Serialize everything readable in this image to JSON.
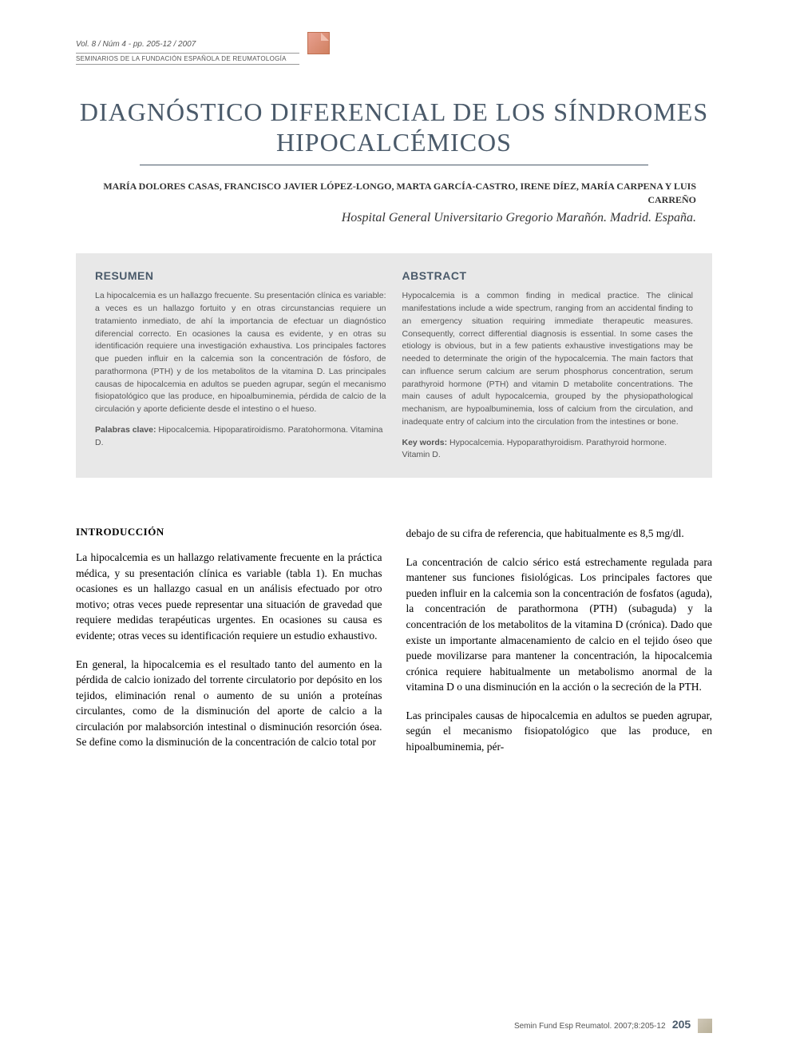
{
  "colors": {
    "title_color": "#4a5a6a",
    "text_color": "#000000",
    "abstract_bg": "#e8e8e8",
    "abstract_text": "#555555",
    "meta_text": "#555555",
    "rule_color": "#4a5a6a"
  },
  "typography": {
    "title_fontsize": 32,
    "abstract_heading_fontsize": 14,
    "abstract_body_fontsize": 10.5,
    "section_heading_fontsize": 13,
    "body_fontsize": 13.5,
    "body_family": "Georgia, serif",
    "sans_family": "Arial, sans-serif"
  },
  "header": {
    "volume_line": "Vol. 8 / Núm 4 - pp. 205-12 / 2007",
    "journal_line": "SEMINARIOS DE LA FUNDACIÓN ESPAÑOLA DE REUMATOLOGÍA"
  },
  "title": "DIAGNÓSTICO DIFERENCIAL DE LOS SÍNDROMES HIPOCALCÉMICOS",
  "authors": "MARÍA DOLORES CASAS, FRANCISCO JAVIER LÓPEZ-LONGO, MARTA GARCÍA-CASTRO, IRENE DÍEZ, MARÍA CARPENA Y LUIS CARREÑO",
  "affiliation": "Hospital General Universitario Gregorio Marañón. Madrid. España.",
  "resumen": {
    "heading": "RESUMEN",
    "body": "La hipocalcemia es un hallazgo frecuente. Su presentación clínica es variable: a veces es un hallazgo fortuito y en otras circunstancias requiere un tratamiento inmediato, de ahí la importancia de efectuar un diagnóstico diferencial correcto. En ocasiones la causa es evidente, y en otras su identificación requiere una investigación exhaustiva. Los principales factores que pueden influir en la calcemia son la concentración de fósforo, de parathormona (PTH) y de los metabolitos de la vitamina D. Las principales causas de hipocalcemia en adultos se pueden agrupar, según el mecanismo fisiopatológico que las produce, en hipoalbuminemia, pérdida de calcio de la circulación y aporte deficiente desde el intestino o el hueso.",
    "keywords_label": "Palabras clave:",
    "keywords": " Hipocalcemia. Hipoparatiroidismo. Paratohormona. Vitamina D."
  },
  "abstract": {
    "heading": "ABSTRACT",
    "body": "Hypocalcemia is a common finding in medical practice. The clinical manifestations include a wide spectrum, ranging from an accidental finding to an emergency situation requiring immediate therapeutic measures. Consequently, correct differential diagnosis is essential. In some cases the etiology is obvious, but in a few patients exhaustive investigations may be needed to determinate the origin of the hypocalcemia. The main factors that can influence serum calcium are serum phosphorus concentration, serum parathyroid hormone (PTH) and vitamin D metabolite concentrations. The main causes of adult hypocalcemia, grouped by the physiopathological mechanism, are hypoalbuminemia, loss of calcium from the circulation, and inadequate entry of calcium into the circulation from the intestines or bone.",
    "keywords_label": "Key words:",
    "keywords": " Hypocalcemia. Hypoparathyroidism. Parathyroid hormone. Vitamin D."
  },
  "body": {
    "section_heading": "INTRODUCCIÓN",
    "col1": {
      "p1": "La hipocalcemia es un hallazgo relativamente frecuente en la práctica médica, y su presentación clínica es variable (tabla 1). En muchas ocasiones es un hallazgo casual en un análisis efectuado por otro motivo; otras veces puede representar una situación de gravedad que requiere medidas terapéuticas urgentes. En ocasiones su causa es evidente; otras veces su identificación requiere un estudio exhaustivo.",
      "p2": "En general, la hipocalcemia es el resultado tanto del aumento en la pérdida de calcio ionizado del torrente circulatorio por depósito en los tejidos, eliminación renal o aumento de su unión a proteínas circulantes, como de la disminución del aporte de calcio a la circulación por malabsorción intestinal o disminución resorción ósea. Se define como la disminución de la concentración de calcio total por"
    },
    "col2": {
      "p1": "debajo de su cifra de referencia, que habitualmente es 8,5 mg/dl.",
      "p2": "La concentración de calcio sérico está estrechamente regulada para mantener sus funciones fisiológicas. Los principales factores que pueden influir en la calcemia son la concentración de fosfatos (aguda), la concentración de parathormona (PTH) (subaguda) y la concentración de los metabolitos de la vitamina D (crónica). Dado que existe un importante almacenamiento de calcio en el tejido óseo que puede movilizarse para mantener la concentración, la hipocalcemia crónica requiere habitualmente un metabolismo anormal de la vitamina D o una disminución en la acción o la secreción de la PTH.",
      "p3": "Las principales causas de hipocalcemia en adultos se pueden agrupar, según el mecanismo fisiopatológico que las produce, en hipoalbuminemia, pér-"
    }
  },
  "footer": {
    "citation": "Semin Fund Esp Reumatol. 2007;8:205-12",
    "page": "205"
  }
}
